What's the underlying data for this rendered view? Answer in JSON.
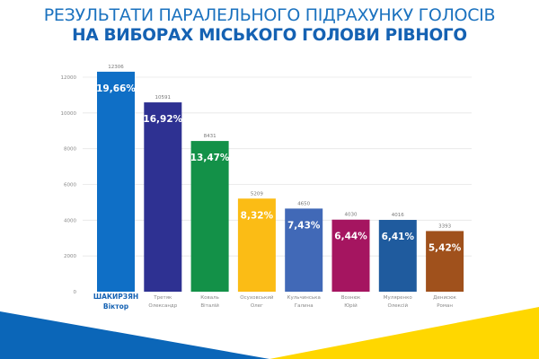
{
  "title_line1": "РЕЗУЛЬТАТИ ПАРАЛЕЛЬНОГО ПІДРАХУНКУ ГОЛОСІВ",
  "title_line2": "НА ВИБОРАХ МІСЬКОГО ГОЛОВИ РІВНОГО",
  "chart_data": {
    "type": "bar",
    "title": "РЕЗУЛЬТАТИ ПАРАЛЕЛЬНОГО ПІДРАХУНКУ ГОЛОСІВ НА ВИБОРАХ МІСЬКОГО ГОЛОВИ РІВНОГО",
    "xlabel": "",
    "ylabel": "",
    "ylim": [
      0,
      12800
    ],
    "yticks": [
      0,
      2000,
      4000,
      6000,
      8000,
      10000,
      12000
    ],
    "grid": true,
    "categories": [
      {
        "line1": "ШАКИРЗЯН",
        "line2": "Віктор",
        "highlight": true
      },
      {
        "line1": "Третяк",
        "line2": "Олександр",
        "highlight": false
      },
      {
        "line1": "Коваль",
        "line2": "Віталій",
        "highlight": false
      },
      {
        "line1": "Осуховський",
        "line2": "Олег",
        "highlight": false
      },
      {
        "line1": "Кульчинська",
        "line2": "Галина",
        "highlight": false
      },
      {
        "line1": "Вознюк",
        "line2": "Юрій",
        "highlight": false
      },
      {
        "line1": "Муляренко",
        "line2": "Олексій",
        "highlight": false
      },
      {
        "line1": "Денисюк",
        "line2": "Роман",
        "highlight": false
      }
    ],
    "values": [
      12306,
      10591,
      8431,
      5209,
      4650,
      4030,
      4016,
      3393
    ],
    "percent_labels": [
      "19,66%",
      "16,92%",
      "13,47%",
      "8,32%",
      "7,43%",
      "6,44%",
      "6,41%",
      "5,42%"
    ],
    "colors": [
      "#0f6fc6",
      "#2e3192",
      "#139148",
      "#fbbc15",
      "#4169b7",
      "#a51560",
      "#1f5b9e",
      "#a0511c"
    ]
  },
  "colors": {
    "flag_blue": "#0b66b8",
    "flag_yellow": "#ffd700",
    "highlight_label": "#1562b3"
  }
}
